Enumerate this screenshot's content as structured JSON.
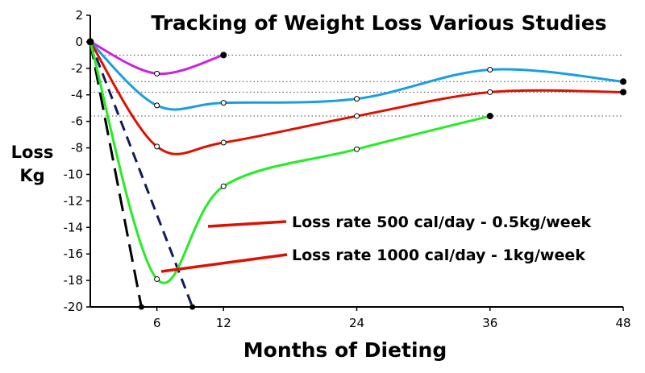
{
  "chart_data": {
    "type": "line",
    "title": "Tracking of Weight Loss Various Studies",
    "xlabel": "Months of Dieting",
    "ylabel_line1": "Loss",
    "ylabel_line2": "Kg",
    "xlim": [
      0,
      48
    ],
    "ylim": [
      -20,
      2
    ],
    "x_ticks": [
      6,
      12,
      24,
      36,
      48
    ],
    "y_ticks": [
      2,
      0,
      -2,
      -4,
      -6,
      -8,
      -10,
      -12,
      -14,
      -16,
      -18,
      -20
    ],
    "grid": false,
    "series": [
      {
        "color": "#cc22dd",
        "points": [
          [
            0,
            0
          ],
          [
            6,
            -2.4
          ],
          [
            12,
            -1
          ]
        ]
      },
      {
        "color": "#1a9ee0",
        "points": [
          [
            0,
            0
          ],
          [
            6,
            -4.8
          ],
          [
            12,
            -4.6
          ],
          [
            24,
            -4.3
          ],
          [
            36,
            -2.1
          ],
          [
            48,
            -3
          ]
        ]
      },
      {
        "color": "#dd1100",
        "points": [
          [
            0,
            0
          ],
          [
            6,
            -7.9
          ],
          [
            12,
            -7.6
          ],
          [
            24,
            -5.6
          ],
          [
            36,
            -3.8
          ],
          [
            48,
            -3.8
          ]
        ]
      },
      {
        "color": "#22ee22",
        "points": [
          [
            0,
            0
          ],
          [
            6,
            -17.9
          ],
          [
            12,
            -10.9
          ],
          [
            24,
            -8.1
          ],
          [
            36,
            -5.6
          ]
        ]
      }
    ],
    "reference_lines": [
      {
        "label": "Loss rate 500 cal/day - 0.5kg/week",
        "color": "#101a5a",
        "points": [
          [
            0,
            0
          ],
          [
            9.2,
            -20
          ]
        ]
      },
      {
        "label": "Loss rate 1000 cal/day - 1kg/week",
        "color": "#000000",
        "points": [
          [
            0,
            0
          ],
          [
            4.6,
            -20
          ]
        ]
      }
    ],
    "dotted_levels": [
      -1,
      -3,
      -3.8,
      -5.6
    ],
    "annotations": [
      {
        "text": "Loss rate 500 cal/day - 0.5kg/week"
      },
      {
        "text": "Loss rate 1000 cal/day - 1kg/week"
      }
    ],
    "colors": {
      "pointer": "#dd1100"
    }
  }
}
